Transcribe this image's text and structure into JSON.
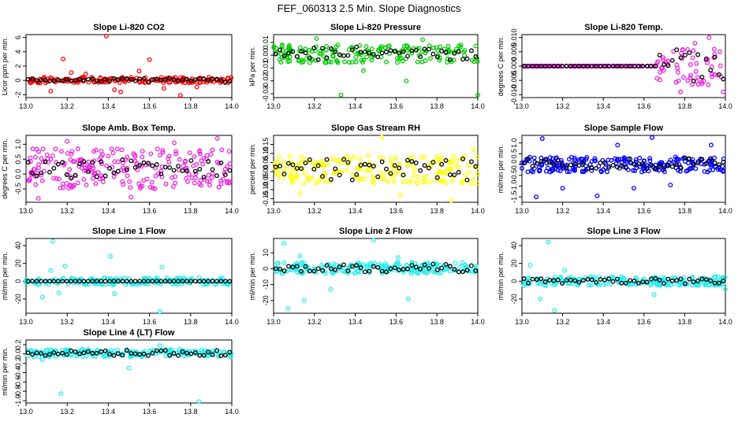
{
  "figure_title": "FEF_060313  2.5 Min. Slope Diagnostics",
  "chart_data": [
    {
      "type": "scatter",
      "title": "Slope Li-820 CO2",
      "ylabel": "Licor ppm per min.",
      "color": "#ff0000",
      "xlim": [
        13.0,
        14.0
      ],
      "ylim": [
        -2.4,
        6.4
      ],
      "yticks": [
        -2,
        0,
        2,
        4,
        6
      ],
      "ytick_labels": [
        "-2",
        "0",
        "2",
        "4",
        "6"
      ],
      "xticks": [
        13.0,
        13.2,
        13.4,
        13.6,
        13.8,
        14.0
      ],
      "xtick_labels": [
        "13.0",
        "13.2",
        "13.4",
        "13.6",
        "13.8",
        "14.0"
      ],
      "band": [
        -0.35,
        0.45
      ],
      "black_band": [
        -0.2,
        0.3
      ],
      "outliers": [
        [
          13.39,
          6.2
        ],
        [
          13.6,
          2.9
        ],
        [
          13.18,
          3.0
        ],
        [
          13.75,
          -2.1
        ],
        [
          13.43,
          -1.3
        ],
        [
          13.46,
          -1.6
        ],
        [
          13.12,
          -1.5
        ],
        [
          13.55,
          1.3
        ],
        [
          13.22,
          1.1
        ],
        [
          13.83,
          -0.9
        ],
        [
          13.29,
          0.9
        ],
        [
          13.67,
          -1.1
        ]
      ],
      "n": 170,
      "seed": 11
    },
    {
      "type": "scatter",
      "title": "Slope Li-820 Pressure",
      "ylabel": "kPa per min.",
      "color": "#00cc00",
      "xlim": [
        13.0,
        14.0
      ],
      "ylim": [
        -0.033,
        0.016
      ],
      "yticks": [
        -0.03,
        -0.02,
        -0.01,
        0.0,
        0.01
      ],
      "ytick_labels": [
        "-0.03",
        "-0.02",
        "-0.01",
        "0.00",
        "0.01"
      ],
      "xticks": [
        13.0,
        13.2,
        13.4,
        13.6,
        13.8,
        14.0
      ],
      "xtick_labels": [
        "13.0",
        "13.2",
        "13.4",
        "13.6",
        "13.8",
        "14.0"
      ],
      "band": [
        -0.006,
        0.008
      ],
      "black_band": [
        -0.004,
        0.007
      ],
      "outliers": [
        [
          13.33,
          -0.031
        ],
        [
          14.0,
          -0.031
        ],
        [
          13.65,
          -0.02
        ],
        [
          13.21,
          0.013
        ],
        [
          13.73,
          0.012
        ],
        [
          13.44,
          -0.012
        ]
      ],
      "n": 170,
      "seed": 23
    },
    {
      "type": "scatter",
      "title": "Slope Li-820 Temp.",
      "ylabel": "degrees C per min.",
      "color": "#ee22dd",
      "xlim": [
        13.0,
        14.0
      ],
      "ylim": [
        -0.011,
        0.011
      ],
      "yticks": [
        -0.01,
        -0.005,
        0.0,
        0.005,
        0.01
      ],
      "ytick_labels": [
        "-0.010",
        "-0.005",
        "0.000",
        "0.005",
        "0.010"
      ],
      "xticks": [
        13.0,
        13.2,
        13.4,
        13.6,
        13.8,
        14.0
      ],
      "xtick_labels": [
        "13.0",
        "13.2",
        "13.4",
        "13.6",
        "13.8",
        "14.0"
      ],
      "band": [
        0.0,
        0.0
      ],
      "late_band": [
        13.66,
        -0.007,
        0.006
      ],
      "black_band": [
        0.0,
        0.0
      ],
      "outliers": [
        [
          13.92,
          0.01
        ],
        [
          13.78,
          -0.009
        ],
        [
          13.99,
          -0.009
        ],
        [
          13.85,
          0.008
        ]
      ],
      "n": 170,
      "seed": 37
    },
    {
      "type": "scatter",
      "title": "Slope Amb. Box Temp.",
      "ylabel": "degrees C per min.",
      "color": "#ee22dd",
      "xlim": [
        13.0,
        14.0
      ],
      "ylim": [
        -0.95,
        1.3
      ],
      "yticks": [
        -0.5,
        0.0,
        0.5,
        1.0
      ],
      "ytick_labels": [
        "-0.5",
        "0.0",
        "0.5",
        "1.0"
      ],
      "xticks": [
        13.0,
        13.2,
        13.4,
        13.6,
        13.8,
        14.0
      ],
      "xtick_labels": [
        "13.0",
        "13.2",
        "13.4",
        "13.6",
        "13.8",
        "14.0"
      ],
      "band": [
        -0.5,
        0.85
      ],
      "black_band": [
        -0.15,
        0.5
      ],
      "outliers": [
        [
          13.06,
          -0.82
        ],
        [
          13.2,
          1.1
        ],
        [
          13.93,
          1.2
        ],
        [
          13.51,
          -0.78
        ],
        [
          13.72,
          1.05
        ]
      ],
      "n": 220,
      "seed": 41
    },
    {
      "type": "scatter",
      "title": "Slope Gas Stream RH",
      "ylabel": "percent per min.",
      "color": "#ffff00",
      "xlim": [
        13.0,
        14.0
      ],
      "ylim": [
        -0.17,
        0.2
      ],
      "yticks": [
        -0.15,
        -0.1,
        -0.05,
        0.0,
        0.05,
        0.1,
        0.15
      ],
      "ytick_labels": [
        "-0.15",
        "-0.10",
        "-0.05",
        "0.00",
        "0.05",
        "0.10",
        "0.15"
      ],
      "xticks": [
        13.0,
        13.2,
        13.4,
        13.6,
        13.8,
        14.0
      ],
      "xtick_labels": [
        "13.0",
        "13.2",
        "13.4",
        "13.6",
        "13.8",
        "14.0"
      ],
      "band": [
        -0.07,
        0.09
      ],
      "black_band": [
        -0.05,
        0.07
      ],
      "outliers": [
        [
          13.53,
          0.19
        ],
        [
          13.87,
          -0.16
        ],
        [
          13.62,
          -0.13
        ],
        [
          13.13,
          -0.12
        ],
        [
          13.98,
          0.12
        ]
      ],
      "n": 200,
      "seed": 53
    },
    {
      "type": "scatter",
      "title": "Slope Sample Flow",
      "ylabel": "ml/min per min.",
      "color": "#0000ff",
      "xlim": [
        13.0,
        14.0
      ],
      "ylim": [
        -1.75,
        1.35
      ],
      "yticks": [
        -1.5,
        -1.0,
        -0.5,
        0.0,
        0.5,
        1.0
      ],
      "ytick_labels": [
        "-1.5",
        "-1.0",
        "-0.5",
        "0.0",
        "0.5",
        "1.0"
      ],
      "xticks": [
        13.0,
        13.2,
        13.4,
        13.6,
        13.8,
        14.0
      ],
      "xtick_labels": [
        "13.0",
        "13.2",
        "13.4",
        "13.6",
        "13.8",
        "14.0"
      ],
      "band": [
        -0.35,
        0.35
      ],
      "black_band": [
        -0.2,
        0.3
      ],
      "outliers": [
        [
          13.1,
          1.2
        ],
        [
          13.64,
          1.25
        ],
        [
          13.37,
          -1.45
        ],
        [
          13.07,
          -1.5
        ],
        [
          13.55,
          -1.1
        ],
        [
          13.73,
          -0.95
        ],
        [
          13.93,
          0.9
        ],
        [
          13.2,
          -1.1
        ],
        [
          13.47,
          0.9
        ]
      ],
      "n": 220,
      "seed": 67
    },
    {
      "type": "scatter",
      "title": "Slope Line 1 Flow",
      "ylabel": "ml/min per min.",
      "color": "#22eeee",
      "xlim": [
        13.0,
        14.0
      ],
      "ylim": [
        -36,
        48
      ],
      "yticks": [
        -20,
        0,
        20,
        40
      ],
      "ytick_labels": [
        "-20",
        "0",
        "20",
        "40"
      ],
      "xticks": [
        13.0,
        13.2,
        13.4,
        13.6,
        13.8,
        14.0
      ],
      "xtick_labels": [
        "13.0",
        "13.2",
        "13.4",
        "13.6",
        "13.8",
        "14.0"
      ],
      "band": [
        -4,
        4
      ],
      "black_band": [
        0,
        0
      ],
      "outliers": [
        [
          13.13,
          45
        ],
        [
          13.08,
          -18
        ],
        [
          13.16,
          -13
        ],
        [
          13.41,
          28
        ],
        [
          13.19,
          17
        ],
        [
          13.65,
          -34
        ],
        [
          13.43,
          -14
        ],
        [
          13.66,
          16
        ],
        [
          13.12,
          12
        ]
      ],
      "n": 180,
      "seed": 71
    },
    {
      "type": "scatter",
      "title": "Slope Line 2 Flow",
      "ylabel": "ml/min per min.",
      "color": "#22eeee",
      "xlim": [
        13.0,
        14.0
      ],
      "ylim": [
        -28,
        19
      ],
      "yticks": [
        -20,
        -10,
        0,
        10
      ],
      "ytick_labels": [
        "-20",
        "-10",
        "0",
        "10"
      ],
      "xticks": [
        13.0,
        13.2,
        13.4,
        13.6,
        13.8,
        14.0
      ],
      "xtick_labels": [
        "13.0",
        "13.2",
        "13.4",
        "13.6",
        "13.8",
        "14.0"
      ],
      "band": [
        -3,
        4
      ],
      "black_band": [
        -2,
        3
      ],
      "outliers": [
        [
          13.05,
          16
        ],
        [
          13.07,
          -25
        ],
        [
          13.15,
          -20
        ],
        [
          13.49,
          18
        ],
        [
          13.66,
          -19
        ],
        [
          13.28,
          -13
        ],
        [
          13.61,
          7
        ],
        [
          13.13,
          8
        ]
      ],
      "n": 190,
      "seed": 83
    },
    {
      "type": "scatter",
      "title": "Slope Line 3 Flow",
      "ylabel": "ml/min per min.",
      "color": "#22eeee",
      "xlim": [
        13.0,
        14.0
      ],
      "ylim": [
        -36,
        48
      ],
      "yticks": [
        -20,
        0,
        20,
        40
      ],
      "ytick_labels": [
        "-20",
        "0",
        "20",
        "40"
      ],
      "xticks": [
        13.0,
        13.2,
        13.4,
        13.6,
        13.8,
        14.0
      ],
      "xtick_labels": [
        "13.0",
        "13.2",
        "13.4",
        "13.6",
        "13.8",
        "14.0"
      ],
      "band": [
        -5,
        5
      ],
      "black_band": [
        -3,
        3
      ],
      "outliers": [
        [
          13.13,
          44
        ],
        [
          13.16,
          -33
        ],
        [
          13.09,
          -20
        ],
        [
          13.04,
          18
        ],
        [
          13.65,
          -15
        ],
        [
          14.0,
          -9
        ],
        [
          13.21,
          12
        ]
      ],
      "n": 190,
      "seed": 97
    },
    {
      "type": "scatter",
      "title": "Slope Line 4 (LT) Flow",
      "ylabel": "ml/min per min.",
      "color": "#22eeee",
      "xlim": [
        13.0,
        14.0
      ],
      "ylim": [
        -1.05,
        0.3
      ],
      "yticks": [
        -1.0,
        -0.8,
        -0.6,
        -0.4,
        -0.2,
        0.0,
        0.2
      ],
      "ytick_labels": [
        "-1.0",
        "-0.8",
        "-0.6",
        "-0.4",
        "-0.2",
        "0.0",
        "0.2"
      ],
      "xticks": [
        13.0,
        13.2,
        13.4,
        13.6,
        13.8,
        14.0
      ],
      "xtick_labels": [
        "13.0",
        "13.2",
        "13.4",
        "13.6",
        "13.8",
        "14.0"
      ],
      "band": [
        -0.06,
        0.1
      ],
      "black_band": [
        -0.04,
        0.08
      ],
      "outliers": [
        [
          13.17,
          -0.85
        ],
        [
          13.84,
          -1.02
        ],
        [
          13.5,
          -0.3
        ],
        [
          13.08,
          -0.12
        ],
        [
          13.65,
          0.18
        ]
      ],
      "n": 190,
      "seed": 101
    }
  ]
}
